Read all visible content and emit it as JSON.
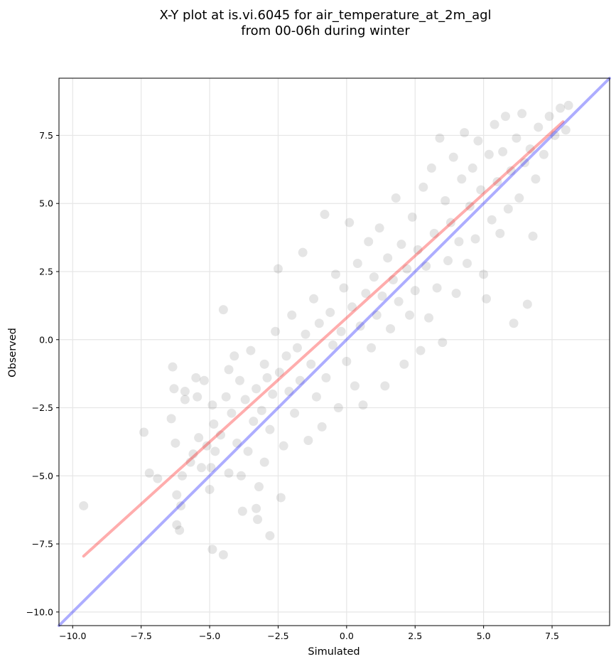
{
  "chart_data": {
    "type": "scatter",
    "title": "X-Y plot at is.vi.6045 for air_temperature_at_2m_agl",
    "subtitle": "from 00-06h during winter",
    "xlabel": "Simulated",
    "ylabel": "Observed",
    "xlim": [
      -10.5,
      9.6
    ],
    "ylim": [
      -10.5,
      9.6
    ],
    "xticks": [
      -10.0,
      -7.5,
      -5.0,
      -2.5,
      0.0,
      2.5,
      5.0,
      7.5
    ],
    "yticks": [
      -10.0,
      -7.5,
      -5.0,
      -2.5,
      0.0,
      2.5,
      5.0,
      7.5
    ],
    "xtick_labels": [
      "−10.0",
      "−7.5",
      "−5.0",
      "−2.5",
      "0.0",
      "2.5",
      "5.0",
      "7.5"
    ],
    "ytick_labels": [
      "−10.0",
      "−7.5",
      "−5.0",
      "−2.5",
      "0.0",
      "2.5",
      "5.0",
      "7.5"
    ],
    "grid": true,
    "colors": {
      "points": "#000000",
      "fit_line": "#ff0000",
      "identity_line": "#0000ff",
      "grid": "#e6e6e6"
    },
    "series": [
      {
        "kind": "scatter",
        "points": [
          [
            -9.6,
            -6.1
          ],
          [
            -7.4,
            -3.4
          ],
          [
            -7.2,
            -4.9
          ],
          [
            -6.9,
            -5.1
          ],
          [
            -6.4,
            -2.9
          ],
          [
            -6.35,
            -1.0
          ],
          [
            -6.3,
            -1.8
          ],
          [
            -6.25,
            -3.8
          ],
          [
            -6.2,
            -5.7
          ],
          [
            -6.2,
            -6.8
          ],
          [
            -6.1,
            -7.0
          ],
          [
            -6.05,
            -6.1
          ],
          [
            -6.0,
            -5.0
          ],
          [
            -5.9,
            -2.2
          ],
          [
            -5.9,
            -1.9
          ],
          [
            -5.7,
            -4.5
          ],
          [
            -5.6,
            -4.2
          ],
          [
            -5.5,
            -1.4
          ],
          [
            -5.45,
            -2.1
          ],
          [
            -5.4,
            -3.6
          ],
          [
            -5.3,
            -4.7
          ],
          [
            -5.2,
            -1.5
          ],
          [
            -5.1,
            -3.9
          ],
          [
            -5.0,
            -5.5
          ],
          [
            -4.95,
            -4.7
          ],
          [
            -4.9,
            -2.4
          ],
          [
            -4.9,
            -7.7
          ],
          [
            -4.85,
            -3.1
          ],
          [
            -4.8,
            -4.1
          ],
          [
            -4.6,
            -3.5
          ],
          [
            -4.5,
            -7.9
          ],
          [
            -4.5,
            1.1
          ],
          [
            -4.4,
            -2.1
          ],
          [
            -4.3,
            -1.1
          ],
          [
            -4.3,
            -4.9
          ],
          [
            -4.2,
            -2.7
          ],
          [
            -4.1,
            -0.6
          ],
          [
            -4.0,
            -3.8
          ],
          [
            -3.9,
            -1.5
          ],
          [
            -3.85,
            -5.0
          ],
          [
            -3.8,
            -6.3
          ],
          [
            -3.7,
            -2.2
          ],
          [
            -3.6,
            -4.1
          ],
          [
            -3.5,
            -0.4
          ],
          [
            -3.4,
            -3.0
          ],
          [
            -3.3,
            -1.8
          ],
          [
            -3.3,
            -6.2
          ],
          [
            -3.25,
            -6.6
          ],
          [
            -3.2,
            -5.4
          ],
          [
            -3.1,
            -2.6
          ],
          [
            -3.0,
            -0.9
          ],
          [
            -3.0,
            -4.5
          ],
          [
            -2.9,
            -1.4
          ],
          [
            -2.8,
            -7.2
          ],
          [
            -2.8,
            -3.3
          ],
          [
            -2.7,
            -2.0
          ],
          [
            -2.6,
            0.3
          ],
          [
            -2.5,
            2.6
          ],
          [
            -2.45,
            -1.2
          ],
          [
            -2.4,
            -5.8
          ],
          [
            -2.3,
            -3.9
          ],
          [
            -2.2,
            -0.6
          ],
          [
            -2.1,
            -1.9
          ],
          [
            -2.0,
            0.9
          ],
          [
            -1.9,
            -2.7
          ],
          [
            -1.8,
            -0.3
          ],
          [
            -1.7,
            -1.5
          ],
          [
            -1.6,
            3.2
          ],
          [
            -1.5,
            0.2
          ],
          [
            -1.4,
            -3.7
          ],
          [
            -1.3,
            -0.9
          ],
          [
            -1.2,
            1.5
          ],
          [
            -1.1,
            -2.1
          ],
          [
            -1.0,
            0.6
          ],
          [
            -0.9,
            -3.2
          ],
          [
            -0.8,
            4.6
          ],
          [
            -0.75,
            -1.4
          ],
          [
            -0.6,
            1.0
          ],
          [
            -0.5,
            -0.2
          ],
          [
            -0.4,
            2.4
          ],
          [
            -0.3,
            -2.5
          ],
          [
            -0.2,
            0.3
          ],
          [
            -0.1,
            1.9
          ],
          [
            0.0,
            -0.8
          ],
          [
            0.1,
            4.3
          ],
          [
            0.2,
            1.2
          ],
          [
            0.3,
            -1.7
          ],
          [
            0.4,
            2.8
          ],
          [
            0.5,
            0.5
          ],
          [
            0.6,
            -2.4
          ],
          [
            0.7,
            1.7
          ],
          [
            0.8,
            3.6
          ],
          [
            0.9,
            -0.3
          ],
          [
            1.0,
            2.3
          ],
          [
            1.1,
            0.9
          ],
          [
            1.2,
            4.1
          ],
          [
            1.3,
            1.6
          ],
          [
            1.4,
            -1.7
          ],
          [
            1.5,
            3.0
          ],
          [
            1.6,
            0.4
          ],
          [
            1.7,
            2.2
          ],
          [
            1.8,
            5.2
          ],
          [
            1.9,
            1.4
          ],
          [
            2.0,
            3.5
          ],
          [
            2.1,
            -0.9
          ],
          [
            2.2,
            2.6
          ],
          [
            2.3,
            0.9
          ],
          [
            2.4,
            4.5
          ],
          [
            2.5,
            1.8
          ],
          [
            2.6,
            3.3
          ],
          [
            2.7,
            -0.4
          ],
          [
            2.8,
            5.6
          ],
          [
            2.9,
            2.7
          ],
          [
            3.0,
            0.8
          ],
          [
            3.1,
            6.3
          ],
          [
            3.2,
            3.9
          ],
          [
            3.3,
            1.9
          ],
          [
            3.4,
            7.4
          ],
          [
            3.5,
            -0.1
          ],
          [
            3.6,
            5.1
          ],
          [
            3.7,
            2.9
          ],
          [
            3.8,
            4.3
          ],
          [
            3.9,
            6.7
          ],
          [
            4.0,
            1.7
          ],
          [
            4.1,
            3.6
          ],
          [
            4.2,
            5.9
          ],
          [
            4.3,
            7.6
          ],
          [
            4.4,
            2.8
          ],
          [
            4.5,
            4.9
          ],
          [
            4.6,
            6.3
          ],
          [
            4.7,
            3.7
          ],
          [
            4.8,
            7.3
          ],
          [
            4.9,
            5.5
          ],
          [
            5.0,
            2.4
          ],
          [
            5.1,
            1.5
          ],
          [
            5.2,
            6.8
          ],
          [
            5.3,
            4.4
          ],
          [
            5.4,
            7.9
          ],
          [
            5.5,
            5.8
          ],
          [
            5.6,
            3.9
          ],
          [
            5.7,
            6.9
          ],
          [
            5.8,
            8.2
          ],
          [
            5.9,
            4.8
          ],
          [
            6.0,
            6.2
          ],
          [
            6.1,
            0.6
          ],
          [
            6.2,
            7.4
          ],
          [
            6.3,
            5.2
          ],
          [
            6.4,
            8.3
          ],
          [
            6.5,
            6.5
          ],
          [
            6.6,
            1.3
          ],
          [
            6.7,
            7.0
          ],
          [
            6.8,
            3.8
          ],
          [
            6.9,
            5.9
          ],
          [
            7.0,
            7.8
          ],
          [
            7.2,
            6.8
          ],
          [
            7.4,
            8.2
          ],
          [
            7.6,
            7.5
          ],
          [
            7.8,
            8.5
          ],
          [
            8.0,
            7.7
          ],
          [
            8.1,
            8.6
          ]
        ]
      },
      {
        "kind": "line",
        "points": [
          [
            -9.6,
            -7.95
          ],
          [
            7.9,
            8.0
          ]
        ]
      },
      {
        "kind": "line",
        "points": [
          [
            -10.5,
            -10.5
          ],
          [
            9.6,
            9.6
          ]
        ]
      }
    ]
  }
}
